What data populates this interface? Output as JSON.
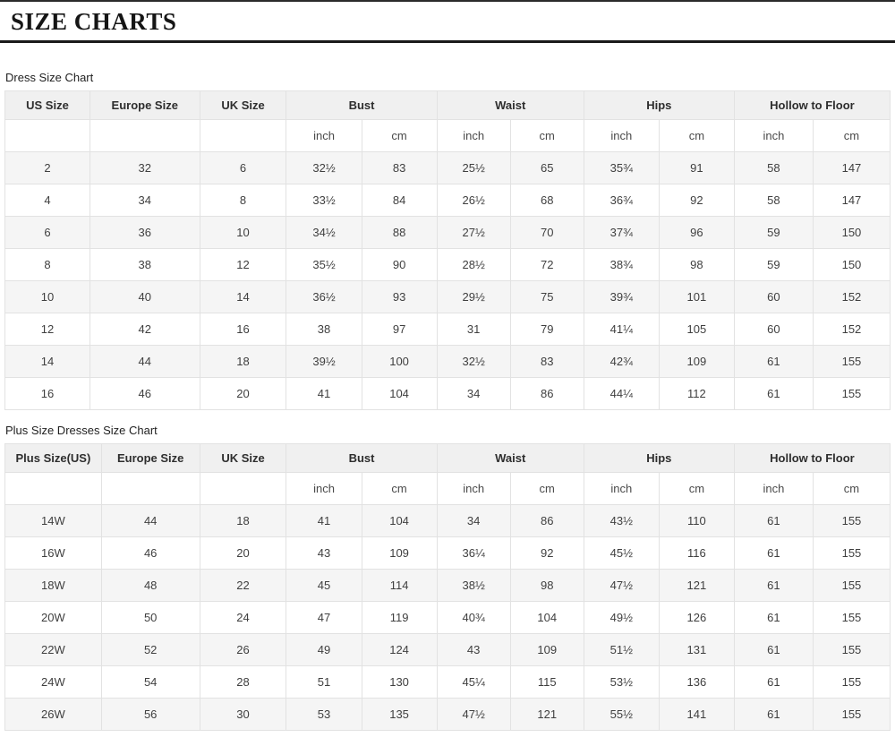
{
  "page_title": "SIZE CHARTS",
  "tables": [
    {
      "label": "Dress Size Chart",
      "simple_columns": [
        "US Size",
        "Europe Size",
        "UK Size"
      ],
      "group_columns": [
        "Bust",
        "Waist",
        "Hips",
        "Hollow to Floor"
      ],
      "units": [
        "inch",
        "cm"
      ],
      "rows": [
        [
          "2",
          "32",
          "6",
          "32½",
          "83",
          "25½",
          "65",
          "35¾",
          "91",
          "58",
          "147"
        ],
        [
          "4",
          "34",
          "8",
          "33½",
          "84",
          "26½",
          "68",
          "36¾",
          "92",
          "58",
          "147"
        ],
        [
          "6",
          "36",
          "10",
          "34½",
          "88",
          "27½",
          "70",
          "37¾",
          "96",
          "59",
          "150"
        ],
        [
          "8",
          "38",
          "12",
          "35½",
          "90",
          "28½",
          "72",
          "38¾",
          "98",
          "59",
          "150"
        ],
        [
          "10",
          "40",
          "14",
          "36½",
          "93",
          "29½",
          "75",
          "39¾",
          "101",
          "60",
          "152"
        ],
        [
          "12",
          "42",
          "16",
          "38",
          "97",
          "31",
          "79",
          "41¼",
          "105",
          "60",
          "152"
        ],
        [
          "14",
          "44",
          "18",
          "39½",
          "100",
          "32½",
          "83",
          "42¾",
          "109",
          "61",
          "155"
        ],
        [
          "16",
          "46",
          "20",
          "41",
          "104",
          "34",
          "86",
          "44¼",
          "112",
          "61",
          "155"
        ]
      ]
    },
    {
      "label": "Plus Size Dresses Size Chart",
      "simple_columns": [
        "Plus Size(US)",
        "Europe Size",
        "UK Size"
      ],
      "group_columns": [
        "Bust",
        "Waist",
        "Hips",
        "Hollow to Floor"
      ],
      "units": [
        "inch",
        "cm"
      ],
      "rows": [
        [
          "14W",
          "44",
          "18",
          "41",
          "104",
          "34",
          "86",
          "43½",
          "110",
          "61",
          "155"
        ],
        [
          "16W",
          "46",
          "20",
          "43",
          "109",
          "36¼",
          "92",
          "45½",
          "116",
          "61",
          "155"
        ],
        [
          "18W",
          "48",
          "22",
          "45",
          "114",
          "38½",
          "98",
          "47½",
          "121",
          "61",
          "155"
        ],
        [
          "20W",
          "50",
          "24",
          "47",
          "119",
          "40¾",
          "104",
          "49½",
          "126",
          "61",
          "155"
        ],
        [
          "22W",
          "52",
          "26",
          "49",
          "124",
          "43",
          "109",
          "51½",
          "131",
          "61",
          "155"
        ],
        [
          "24W",
          "54",
          "28",
          "51",
          "130",
          "45¼",
          "115",
          "53½",
          "136",
          "61",
          "155"
        ],
        [
          "26W",
          "56",
          "30",
          "53",
          "135",
          "47½",
          "121",
          "55½",
          "141",
          "61",
          "155"
        ]
      ]
    }
  ]
}
